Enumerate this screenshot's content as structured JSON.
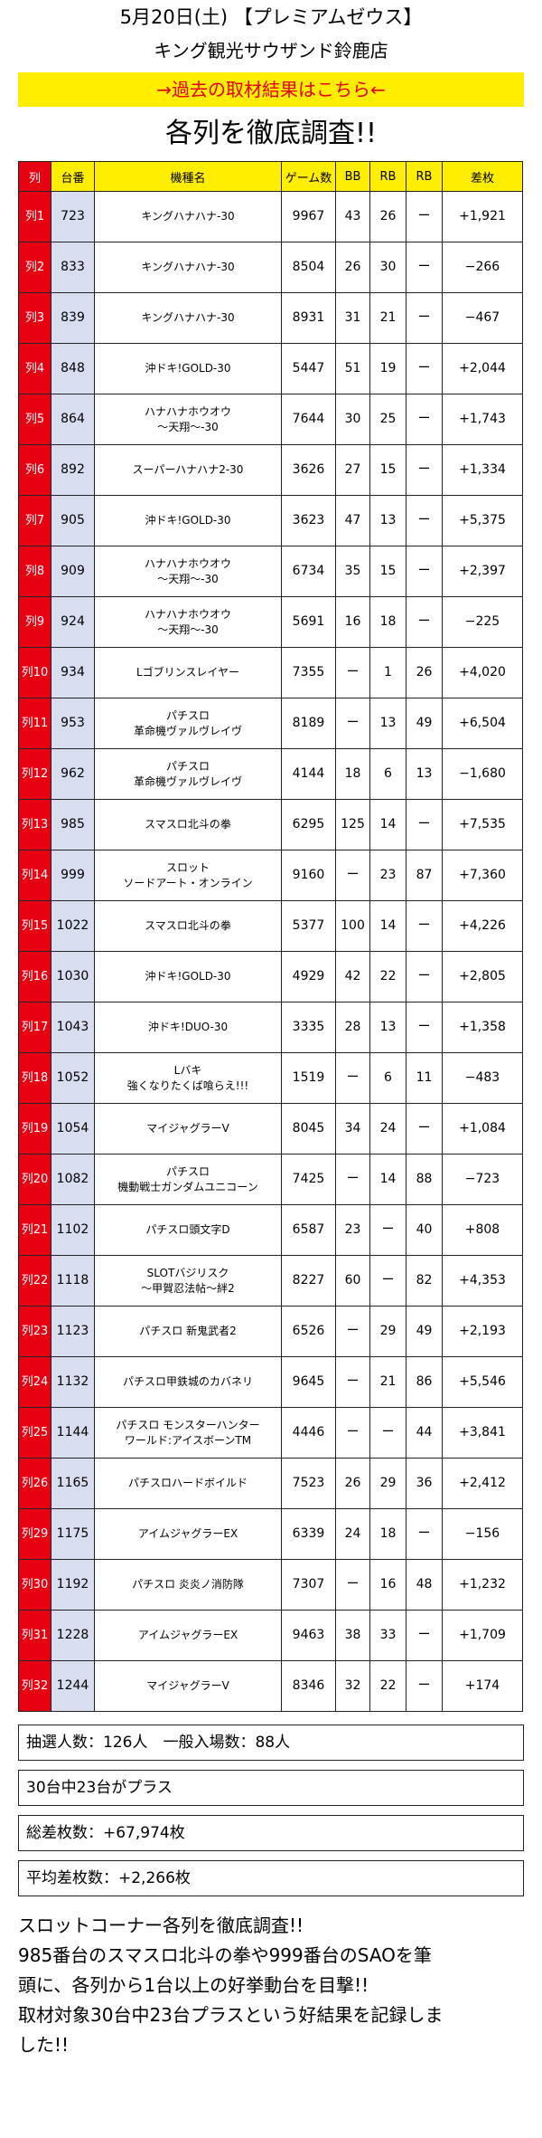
{
  "header": {
    "date_line": "5月20日(土) 【プレミアムゼウス】",
    "store_name": "キング観光サウザンド鈴鹿店",
    "banner_link": "→過去の取材結果はこちら←",
    "section_title": "各列を徹底調査!!"
  },
  "table": {
    "headers": [
      "列",
      "台番",
      "機種名",
      "ゲーム数",
      "BB",
      "RB",
      "RB",
      "差枚"
    ],
    "rows": [
      [
        "列1",
        "723",
        "キングハナハナ-30",
        "9967",
        "43",
        "26",
        "ー",
        "+1,921"
      ],
      [
        "列2",
        "833",
        "キングハナハナ-30",
        "8504",
        "26",
        "30",
        "ー",
        "−266"
      ],
      [
        "列3",
        "839",
        "キングハナハナ-30",
        "8931",
        "31",
        "21",
        "ー",
        "−467"
      ],
      [
        "列4",
        "848",
        "沖ドキ!GOLD-30",
        "5447",
        "51",
        "19",
        "ー",
        "+2,044"
      ],
      [
        "列5",
        "864",
        "ハナハナホウオウ\n〜天翔〜-30",
        "7644",
        "30",
        "25",
        "ー",
        "+1,743"
      ],
      [
        "列6",
        "892",
        "スーパーハナハナ2-30",
        "3626",
        "27",
        "15",
        "ー",
        "+1,334"
      ],
      [
        "列7",
        "905",
        "沖ドキ!GOLD-30",
        "3623",
        "47",
        "13",
        "ー",
        "+5,375"
      ],
      [
        "列8",
        "909",
        "ハナハナホウオウ\n〜天翔〜-30",
        "6734",
        "35",
        "15",
        "ー",
        "+2,397"
      ],
      [
        "列9",
        "924",
        "ハナハナホウオウ\n〜天翔〜-30",
        "5691",
        "16",
        "18",
        "ー",
        "−225"
      ],
      [
        "列10",
        "934",
        "Lゴブリンスレイヤー",
        "7355",
        "ー",
        "1",
        "26",
        "+4,020"
      ],
      [
        "列11",
        "953",
        "パチスロ\n革命機ヴァルヴレイヴ",
        "8189",
        "ー",
        "13",
        "49",
        "+6,504"
      ],
      [
        "列12",
        "962",
        "パチスロ\n革命機ヴァルヴレイヴ",
        "4144",
        "18",
        "6",
        "13",
        "−1,680"
      ],
      [
        "列13",
        "985",
        "スマスロ北斗の拳",
        "6295",
        "125",
        "14",
        "ー",
        "+7,535"
      ],
      [
        "列14",
        "999",
        "スロット\nソードアート・オンライン",
        "9160",
        "ー",
        "23",
        "87",
        "+7,360"
      ],
      [
        "列15",
        "1022",
        "スマスロ北斗の拳",
        "5377",
        "100",
        "14",
        "ー",
        "+4,226"
      ],
      [
        "列16",
        "1030",
        "沖ドキ!GOLD-30",
        "4929",
        "42",
        "22",
        "ー",
        "+2,805"
      ],
      [
        "列17",
        "1043",
        "沖ドキ!DUO-30",
        "3335",
        "28",
        "13",
        "ー",
        "+1,358"
      ],
      [
        "列18",
        "1052",
        "Lバキ\n強くなりたくば喰らえ!!!",
        "1519",
        "ー",
        "6",
        "11",
        "−483"
      ],
      [
        "列19",
        "1054",
        "マイジャグラーV",
        "8045",
        "34",
        "24",
        "ー",
        "+1,084"
      ],
      [
        "列20",
        "1082",
        "パチスロ\n機動戦士ガンダムユニコーン",
        "7425",
        "ー",
        "14",
        "88",
        "−723"
      ],
      [
        "列21",
        "1102",
        "パチスロ頭文字D",
        "6587",
        "23",
        "ー",
        "40",
        "+808"
      ],
      [
        "列22",
        "1118",
        "SLOTバジリスク\n〜甲賀忍法帖〜絆2",
        "8227",
        "60",
        "ー",
        "82",
        "+4,353"
      ],
      [
        "列23",
        "1123",
        "パチスロ 新鬼武者2",
        "6526",
        "ー",
        "29",
        "49",
        "+2,193"
      ],
      [
        "列24",
        "1132",
        "パチスロ甲鉄城のカバネリ",
        "9645",
        "ー",
        "21",
        "86",
        "+5,546"
      ],
      [
        "列25",
        "1144",
        "パチスロ モンスターハンター\nワールド:アイスボーンTM",
        "4446",
        "ー",
        "ー",
        "44",
        "+3,841"
      ],
      [
        "列26",
        "1165",
        "パチスロハードボイルド",
        "7523",
        "26",
        "29",
        "36",
        "+2,412"
      ],
      [
        "列29",
        "1175",
        "アイムジャグラーEX",
        "6339",
        "24",
        "18",
        "ー",
        "−156"
      ],
      [
        "列30",
        "1192",
        "パチスロ 炎炎ノ消防隊",
        "7307",
        "ー",
        "16",
        "48",
        "+1,232"
      ],
      [
        "列31",
        "1228",
        "アイムジャグラーEX",
        "9463",
        "38",
        "33",
        "ー",
        "+1,709"
      ],
      [
        "列32",
        "1244",
        "マイジャグラーV",
        "8346",
        "32",
        "22",
        "ー",
        "+174"
      ]
    ]
  },
  "info": {
    "lottery": "抽選人数：126人　一般入場数：88人",
    "plus_count": "30台中23台がプラス",
    "total_diff": "総差枚数：+67,974枚",
    "avg_diff": "平均差枚数：+2,266枚"
  },
  "summary": {
    "lines": [
      "スロットコーナー各列を徹底調査!!",
      "985番台のスマスロ北斗の拳や999番台のSAOを筆",
      "頭に、各列から1台以上の好挙動台を目撃!!",
      "取材対象30台中23台プラスという好結果を記録しま",
      "した!!"
    ]
  },
  "colors": {
    "banner_bg": "#ffee00",
    "banner_text": "#e60012",
    "header_bg": "#ffee00",
    "row_label_bg": "#e60012",
    "machine_no_bg": "#d8deef"
  }
}
